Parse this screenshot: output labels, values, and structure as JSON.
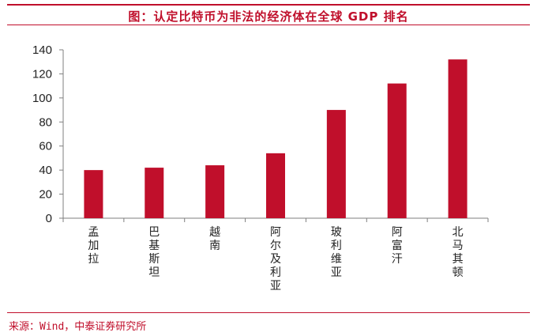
{
  "title": "图：认定比特币为非法的经济体在全球 GDP 排名",
  "source": "来源：Wind，中泰证券研究所",
  "colors": {
    "accent": "#c00f2b",
    "bar": "#c00f2b",
    "axis": "#7f7f7f",
    "text": "#222222"
  },
  "chart_data": {
    "type": "bar",
    "categories": [
      "孟加拉",
      "巴基斯坦",
      "越南",
      "阿尔及利亚",
      "玻利维亚",
      "阿富汗",
      "北马其顿"
    ],
    "values": [
      40,
      42,
      44,
      54,
      90,
      112,
      132
    ],
    "yticks": [
      0,
      20,
      40,
      60,
      80,
      100,
      120,
      140
    ],
    "ylim": [
      0,
      140
    ],
    "grid": false,
    "legend": "none",
    "xlabel": "",
    "ylabel": ""
  }
}
